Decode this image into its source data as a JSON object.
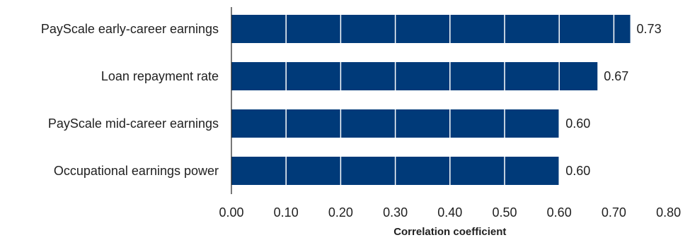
{
  "chart_data": {
    "type": "bar",
    "orientation": "horizontal",
    "categories": [
      "PayScale early-career earnings",
      "Loan repayment rate",
      "PayScale mid-career earnings",
      "Occupational earnings power"
    ],
    "values": [
      0.73,
      0.67,
      0.6,
      0.6
    ],
    "value_labels": [
      "0.73",
      "0.67",
      "0.60",
      "0.60"
    ],
    "title": "",
    "xlabel": "Correlation coefficient",
    "ylabel": "",
    "xlim": [
      0,
      0.8
    ],
    "x_ticks": [
      "0.00",
      "0.10",
      "0.20",
      "0.30",
      "0.40",
      "0.50",
      "0.60",
      "0.70",
      "0.80"
    ],
    "grid": "vertical lines (white, drawn over bars)",
    "legend": "none",
    "colors": {
      "bar": "#003a79",
      "gridline_on_bar": "#ffffff",
      "axis": "#1f1f1f",
      "text": "#1f1f1f"
    }
  }
}
